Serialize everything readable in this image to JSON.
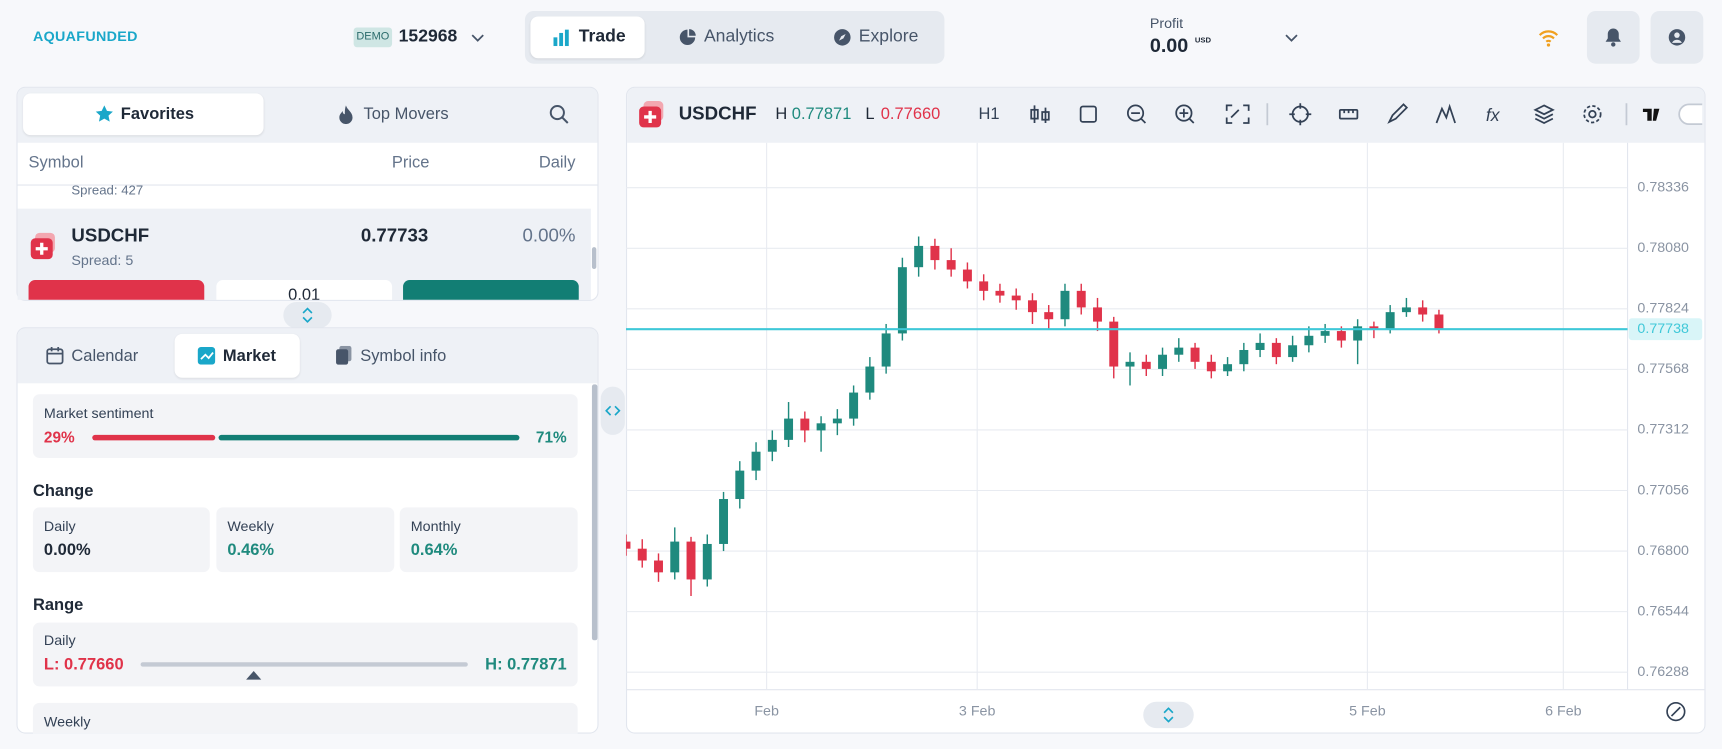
{
  "header": {
    "logo": "AQUAFUNDED",
    "account_badge": "DEMO",
    "account_id": "152968",
    "nav": [
      "Trade",
      "Analytics",
      "Explore"
    ],
    "profit_label": "Profit",
    "profit_value": "0.00",
    "profit_currency": "USD"
  },
  "watchlist": {
    "tabs": [
      "Favorites",
      "Top Movers"
    ],
    "columns": [
      "Symbol",
      "Price",
      "Daily"
    ],
    "prev_row_spread": "Spread: 427",
    "row": {
      "symbol": "USDCHF",
      "spread": "Spread: 5",
      "price": 0.77733,
      "daily": "0.00%",
      "lot": "0.01"
    }
  },
  "details": {
    "tabs": [
      "Calendar",
      "Market",
      "Symbol info"
    ],
    "sentiment": {
      "title": "Market sentiment",
      "sell": {
        "value": 29,
        "label": "29%"
      },
      "buy": {
        "value": 71,
        "label": "71%"
      }
    },
    "change": {
      "title": "Change",
      "items": [
        {
          "label": "Daily",
          "value": "0.00%"
        },
        {
          "label": "Weekly",
          "value": "0.46%"
        },
        {
          "label": "Monthly",
          "value": "0.64%"
        }
      ]
    },
    "range": {
      "title": "Range",
      "daily_label": "Daily",
      "low": {
        "value": 0.7766,
        "label": "L: 0.77660"
      },
      "high": {
        "value": 0.77871,
        "label": "H: 0.77871"
      },
      "weekly_label": "Weekly"
    }
  },
  "chart_toolbar": {
    "symbol": "USDCHF",
    "high_label": "H",
    "high": "0.77871",
    "low_label": "L",
    "low": "0.77660",
    "timeframe": "H1"
  },
  "chart_data": {
    "type": "candlestick",
    "up_color": "#1f8a7e",
    "down_color": "#e0334a",
    "grid": true,
    "x": [
      0,
      2,
      4,
      6,
      8,
      10,
      12,
      14,
      16,
      18,
      20,
      22,
      24,
      26,
      28,
      30,
      32,
      34,
      36,
      38,
      40,
      42,
      44,
      46,
      48,
      50,
      52,
      54,
      56,
      58,
      60,
      62,
      64,
      66,
      68,
      70,
      72,
      74,
      76,
      78,
      80,
      82,
      84,
      86,
      88,
      90,
      92,
      94,
      96,
      98,
      100
    ],
    "open": [
      0.7684,
      0.7681,
      0.7676,
      0.7671,
      0.7684,
      0.7668,
      0.7683,
      0.7702,
      0.7714,
      0.7722,
      0.7727,
      0.7736,
      0.7731,
      0.7734,
      0.7736,
      0.7747,
      0.7758,
      0.7772,
      0.78,
      0.7809,
      0.7803,
      0.7799,
      0.7794,
      0.779,
      0.7788,
      0.7786,
      0.7781,
      0.7778,
      0.779,
      0.7783,
      0.7777,
      0.7758,
      0.776,
      0.7757,
      0.7763,
      0.7766,
      0.776,
      0.7756,
      0.7759,
      0.7765,
      0.7768,
      0.7762,
      0.7767,
      0.7771,
      0.7773,
      0.7769,
      0.7775,
      0.7774,
      0.7781,
      0.7783,
      0.778
    ],
    "high": [
      0.7687,
      0.7685,
      0.7679,
      0.769,
      0.7686,
      0.7687,
      0.7705,
      0.7718,
      0.7726,
      0.7731,
      0.7743,
      0.7739,
      0.7737,
      0.774,
      0.775,
      0.7762,
      0.7776,
      0.7804,
      0.7813,
      0.7812,
      0.7808,
      0.7802,
      0.7797,
      0.7793,
      0.7791,
      0.7789,
      0.7784,
      0.7793,
      0.7793,
      0.7787,
      0.7779,
      0.7764,
      0.7763,
      0.7766,
      0.777,
      0.7768,
      0.7763,
      0.7762,
      0.7768,
      0.7772,
      0.777,
      0.7771,
      0.7775,
      0.7776,
      0.7775,
      0.7778,
      0.7777,
      0.7784,
      0.7787,
      0.7786,
      0.7782
    ],
    "low": [
      0.7678,
      0.7673,
      0.7667,
      0.7668,
      0.7661,
      0.7665,
      0.768,
      0.7698,
      0.771,
      0.7718,
      0.7724,
      0.7726,
      0.7722,
      0.7729,
      0.7733,
      0.7744,
      0.7755,
      0.7769,
      0.7796,
      0.7799,
      0.7796,
      0.7791,
      0.7786,
      0.7785,
      0.7782,
      0.7776,
      0.7774,
      0.7775,
      0.778,
      0.7773,
      0.7753,
      0.775,
      0.7754,
      0.7754,
      0.776,
      0.7757,
      0.7753,
      0.7754,
      0.7756,
      0.7762,
      0.7759,
      0.776,
      0.7764,
      0.7768,
      0.7766,
      0.7759,
      0.777,
      0.7772,
      0.7779,
      0.7777,
      0.7772
    ],
    "close": [
      0.7681,
      0.7676,
      0.7671,
      0.7684,
      0.7668,
      0.7683,
      0.7702,
      0.7714,
      0.7722,
      0.7727,
      0.7736,
      0.7731,
      0.7734,
      0.7736,
      0.7747,
      0.7758,
      0.7772,
      0.78,
      0.7809,
      0.7803,
      0.7799,
      0.7794,
      0.779,
      0.7788,
      0.7786,
      0.7781,
      0.7778,
      0.779,
      0.7783,
      0.7777,
      0.7758,
      0.776,
      0.7757,
      0.7763,
      0.7766,
      0.776,
      0.7756,
      0.7759,
      0.7765,
      0.7768,
      0.7762,
      0.7767,
      0.7771,
      0.7773,
      0.7769,
      0.7775,
      0.7774,
      0.7781,
      0.7783,
      0.778,
      0.77738
    ],
    "xlim": [
      0,
      123.2
    ],
    "xticks": [
      {
        "value": 17.3,
        "label": "Feb"
      },
      {
        "value": 43.2,
        "label": "3 Feb"
      },
      {
        "value": 91.2,
        "label": "5 Feb"
      },
      {
        "value": 115.3,
        "label": "6 Feb"
      }
    ],
    "ylim": [
      0.76214,
      0.78526
    ],
    "yticks": [
      0.76288,
      0.76544,
      {
        "value": 0.768,
        "label": "0.76800"
      },
      0.77056,
      0.77312,
      0.77568,
      0.77824,
      {
        "value": 0.7808,
        "label": "0.78080"
      },
      0.78336
    ],
    "last_price": {
      "value": 0.77738,
      "label": "0.77738"
    },
    "last_price_color": "#3fc8d8"
  }
}
